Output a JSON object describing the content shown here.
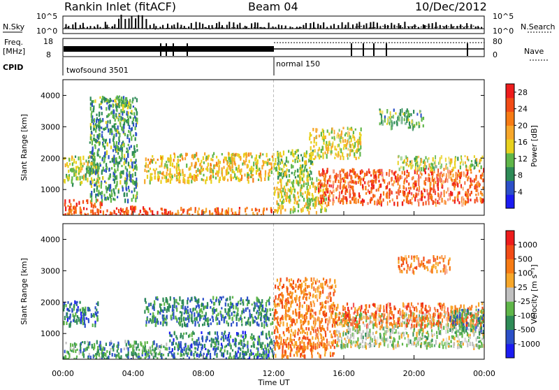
{
  "header": {
    "station": "Rankin Inlet (fitACF)",
    "beam": "Beam 04",
    "date": "10/Dec/2012"
  },
  "strips": {
    "nsky_label": "N.Sky",
    "nsky_ticks": [
      "10^5",
      "10^0"
    ],
    "nsearch_label": "N.Search",
    "nsearch_ticks": [
      "10^5",
      "10^0"
    ],
    "freq_label": "Freq.",
    "freq_unit": "[MHz]",
    "freq_ticks": [
      "18",
      "8"
    ],
    "nave_label": "Nave",
    "nave_ticks": [
      "80",
      "0"
    ],
    "cpid_label": "CPID",
    "cpid_modes": [
      {
        "name": "twofsound 3501",
        "start_hour": 0,
        "end_hour": 12
      },
      {
        "name": "normal 150",
        "start_hour": 12,
        "end_hour": 24
      }
    ]
  },
  "chart_data": [
    {
      "type": "heatmap",
      "quantity": "Power",
      "xlabel": "Time UT",
      "ylabel": "Slant Range [km]",
      "x_ticks": [
        "00:00",
        "04:00",
        "08:00",
        "12:00",
        "16:00",
        "20:00",
        "00:00"
      ],
      "xlim_hours": [
        0,
        24
      ],
      "ylim": [
        180,
        4500
      ],
      "y_ticks": [
        1000,
        2000,
        3000,
        4000
      ],
      "colorbar": {
        "label": "Power [dB]",
        "tick_values": [
          4,
          8,
          12,
          16,
          20,
          24,
          28
        ],
        "range": [
          0,
          30
        ],
        "colors": [
          "#1b1bf2",
          "#2c50c8",
          "#2e8b57",
          "#5fb649",
          "#e8d11e",
          "#f7a72a",
          "#f77b14",
          "#f24b16",
          "#ee1c1c"
        ]
      },
      "regions": [
        {
          "t0": 0.0,
          "t1": 2.2,
          "r0": 200,
          "r1": 700,
          "level": 0.85
        },
        {
          "t0": 2.2,
          "t1": 6.0,
          "r0": 200,
          "r1": 500,
          "level": 0.9
        },
        {
          "t0": 6.0,
          "t1": 12.0,
          "r0": 200,
          "r1": 450,
          "level": 0.8
        },
        {
          "t0": 0.0,
          "t1": 2.0,
          "r0": 1200,
          "r1": 2100,
          "level": 0.45
        },
        {
          "t0": 1.5,
          "t1": 4.2,
          "r0": 700,
          "r1": 4000,
          "level": 0.3
        },
        {
          "t0": 3.0,
          "t1": 3.9,
          "r0": 3400,
          "r1": 4000,
          "level": 0.4
        },
        {
          "t0": 4.6,
          "t1": 6.0,
          "r0": 1300,
          "r1": 2100,
          "level": 0.55
        },
        {
          "t0": 6.0,
          "t1": 12.0,
          "r0": 1300,
          "r1": 2200,
          "level": 0.55
        },
        {
          "t0": 12.0,
          "t1": 14.2,
          "r0": 1400,
          "r1": 2300,
          "level": 0.4
        },
        {
          "t0": 12.0,
          "t1": 15.0,
          "r0": 300,
          "r1": 1400,
          "level": 0.5
        },
        {
          "t0": 14.5,
          "t1": 24.0,
          "r0": 600,
          "r1": 1700,
          "level": 0.85
        },
        {
          "t0": 19.0,
          "t1": 24.0,
          "r0": 1700,
          "r1": 2100,
          "level": 0.45
        },
        {
          "t0": 18.0,
          "t1": 20.5,
          "r0": 3000,
          "r1": 3600,
          "level": 0.35
        },
        {
          "t0": 14.0,
          "t1": 17.0,
          "r0": 2000,
          "r1": 3000,
          "level": 0.5
        }
      ]
    },
    {
      "type": "heatmap",
      "quantity": "Velocity",
      "xlabel": "Time UT",
      "ylabel": "Slant Range [km]",
      "x_ticks": [
        "00:00",
        "04:00",
        "08:00",
        "12:00",
        "16:00",
        "20:00",
        "00:00"
      ],
      "xlim_hours": [
        0,
        24
      ],
      "ylim": [
        180,
        4500
      ],
      "y_ticks": [
        1000,
        2000,
        3000,
        4000
      ],
      "colorbar": {
        "label": "Velocity [m s⁻¹]",
        "tick_labels": [
          "1000",
          "500",
          "100",
          "25",
          "-25",
          "-100",
          "-500",
          "-1000"
        ],
        "colors": [
          "#1b1bf2",
          "#2c50c8",
          "#2e8b57",
          "#5fb649",
          "#c0c0c0",
          "#f7a72a",
          "#f77b14",
          "#f24b16",
          "#ee1c1c"
        ]
      },
      "regions": [
        {
          "t0": 0.0,
          "t1": 6.0,
          "r0": 200,
          "r1": 800,
          "level": 0.3
        },
        {
          "t0": 0.0,
          "t1": 2.0,
          "r0": 1300,
          "r1": 2100,
          "level": 0.2
        },
        {
          "t0": 4.6,
          "t1": 12.0,
          "r0": 1300,
          "r1": 2200,
          "level": 0.25
        },
        {
          "t0": 6.0,
          "t1": 12.0,
          "r0": 200,
          "r1": 1100,
          "level": 0.2
        },
        {
          "t0": 12.0,
          "t1": 15.5,
          "r0": 300,
          "r1": 2800,
          "level": 0.75
        },
        {
          "t0": 15.5,
          "t1": 24.0,
          "r0": 600,
          "r1": 1700,
          "level": 0.45
        },
        {
          "t0": 15.0,
          "t1": 24.0,
          "r0": 1300,
          "r1": 2000,
          "level": 0.8
        },
        {
          "t0": 19.0,
          "t1": 22.0,
          "r0": 3000,
          "r1": 3500,
          "level": 0.75
        },
        {
          "t0": 22.0,
          "t1": 24.0,
          "r0": 1100,
          "r1": 1800,
          "level": 0.25
        }
      ]
    }
  ]
}
